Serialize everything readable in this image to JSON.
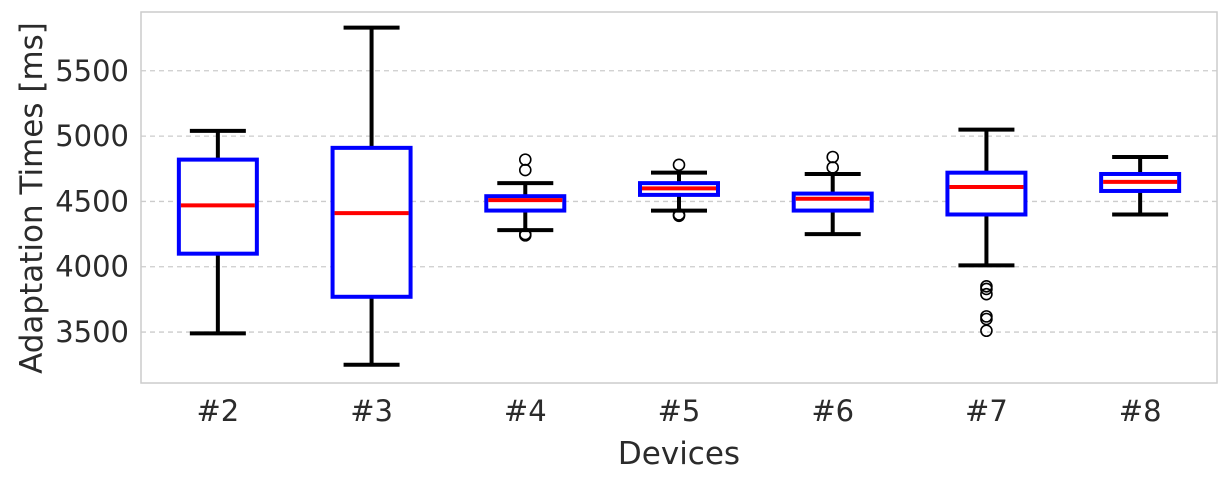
{
  "chart_data": {
    "type": "box",
    "xlabel": "Devices",
    "ylabel": "Adaptation Times [ms]",
    "categories": [
      "#2",
      "#3",
      "#4",
      "#5",
      "#6",
      "#7",
      "#8"
    ],
    "ylim": [
      3110,
      5950
    ],
    "yticks": [
      3500,
      4000,
      4500,
      5000,
      5500
    ],
    "grid": "horizontal dashed",
    "colors": {
      "box": "#0000ff",
      "median": "#ff0000",
      "whisker": "#000000",
      "grid": "#cccccc",
      "frame": "#cccccc"
    },
    "boxes": [
      {
        "category": "#2",
        "whisker_low": 3490,
        "q1": 4100,
        "median": 4470,
        "q3": 4820,
        "whisker_high": 5040,
        "outliers": []
      },
      {
        "category": "#3",
        "whisker_low": 3250,
        "q1": 3770,
        "median": 4410,
        "q3": 4910,
        "whisker_high": 5830,
        "outliers": []
      },
      {
        "category": "#4",
        "whisker_low": 4280,
        "q1": 4430,
        "median": 4510,
        "q3": 4540,
        "whisker_high": 4640,
        "outliers": [
          4240,
          4250,
          4740,
          4820
        ]
      },
      {
        "category": "#5",
        "whisker_low": 4430,
        "q1": 4550,
        "median": 4600,
        "q3": 4640,
        "whisker_high": 4720,
        "outliers": [
          4390,
          4400,
          4780
        ]
      },
      {
        "category": "#6",
        "whisker_low": 4250,
        "q1": 4430,
        "median": 4520,
        "q3": 4560,
        "whisker_high": 4710,
        "outliers": [
          4760,
          4840
        ]
      },
      {
        "category": "#7",
        "whisker_low": 4010,
        "q1": 4400,
        "median": 4610,
        "q3": 4720,
        "whisker_high": 5050,
        "outliers": [
          3510,
          3600,
          3620,
          3790,
          3830,
          3850
        ]
      },
      {
        "category": "#8",
        "whisker_low": 4400,
        "q1": 4580,
        "median": 4650,
        "q3": 4710,
        "whisker_high": 4840,
        "outliers": []
      }
    ]
  }
}
